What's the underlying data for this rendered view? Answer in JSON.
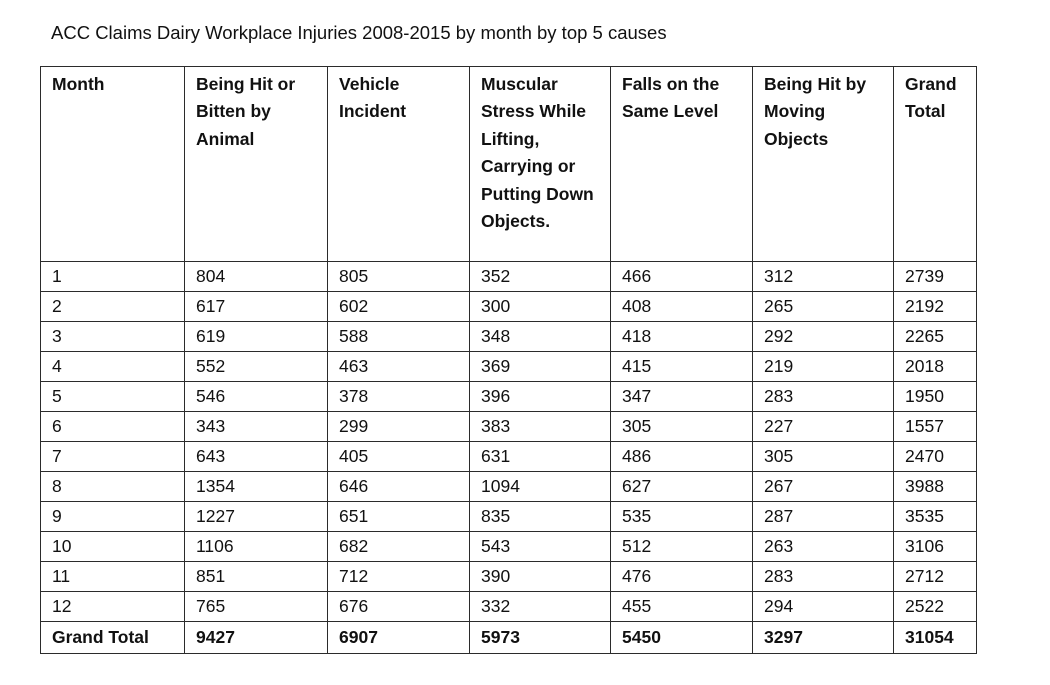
{
  "document": {
    "title": "ACC Claims Dairy Workplace Injuries 2008-2015 by month by top 5 causes"
  },
  "table": {
    "headers": [
      "Month",
      "Being Hit or Bitten by Animal",
      "Vehicle Incident",
      "Muscular Stress While Lifting, Carrying or Putting Down Objects.",
      "Falls on the Same Level",
      "Being Hit by Moving Objects",
      "Grand Total"
    ],
    "rows": [
      [
        "1",
        "804",
        "805",
        "352",
        "466",
        "312",
        "2739"
      ],
      [
        "2",
        "617",
        "602",
        "300",
        "408",
        "265",
        "2192"
      ],
      [
        "3",
        "619",
        "588",
        "348",
        "418",
        "292",
        "2265"
      ],
      [
        "4",
        "552",
        "463",
        "369",
        "415",
        "219",
        "2018"
      ],
      [
        "5",
        "546",
        "378",
        "396",
        "347",
        "283",
        "1950"
      ],
      [
        "6",
        "343",
        "299",
        "383",
        "305",
        "227",
        "1557"
      ],
      [
        "7",
        "643",
        "405",
        "631",
        "486",
        "305",
        "2470"
      ],
      [
        "8",
        "1354",
        "646",
        "1094",
        "627",
        "267",
        "3988"
      ],
      [
        "9",
        "1227",
        "651",
        "835",
        "535",
        "287",
        "3535"
      ],
      [
        "10",
        "1106",
        "682",
        "543",
        "512",
        "263",
        "3106"
      ],
      [
        "11",
        "851",
        "712",
        "390",
        "476",
        "283",
        "2712"
      ],
      [
        "12",
        "765",
        "676",
        "332",
        "455",
        "294",
        "2522"
      ]
    ],
    "totals": [
      "Grand Total",
      "9427",
      "6907",
      "5973",
      "5450",
      "3297",
      "31054"
    ]
  }
}
